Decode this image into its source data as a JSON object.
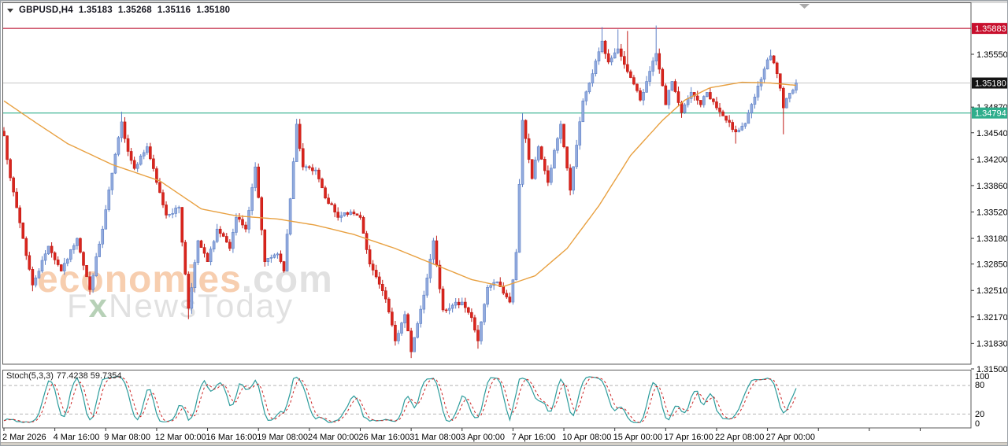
{
  "header": {
    "symbol_timeframe": "GBPUSD,H4",
    "open": "1.35183",
    "high": "1.35268",
    "low": "1.35116",
    "close": "1.35180"
  },
  "watermark": {
    "line1_main": "economies",
    "line1_suffix": ".com",
    "line2_f": "F",
    "line2_x": "x",
    "line2_rest": "NewsToday"
  },
  "chart_data": {
    "type": "candlestick",
    "symbol": "GBPUSD",
    "timeframe": "H4",
    "title": "GBPUSD,H4 1.35183 1.35268 1.35116 1.35180",
    "price_axis": {
      "plain_labels": [
        "1.35550",
        "1.34870",
        "1.34540",
        "1.34200",
        "1.33860",
        "1.33520",
        "1.33180",
        "1.32850",
        "1.32510",
        "1.32170",
        "1.31830",
        "1.31500"
      ],
      "range": [
        1.315,
        1.35883
      ]
    },
    "price_tags": [
      {
        "text": "1.35883",
        "value": 1.35883,
        "kind": "resistance"
      },
      {
        "text": "1.35180",
        "value": 1.3518,
        "kind": "current"
      },
      {
        "text": "1.34794",
        "value": 1.34794,
        "kind": "support"
      }
    ],
    "levels": [
      {
        "value": 1.35883,
        "color": "#c0203e"
      },
      {
        "value": 1.3518,
        "color": "#c6c6c6"
      },
      {
        "value": 1.34794,
        "color": "#2fae8c"
      }
    ],
    "time_axis": {
      "labels": [
        "2 Mar 2026",
        "4 Mar 16:00",
        "9 Mar 08:00",
        "12 Mar 00:00",
        "16 Mar 16:00",
        "19 Mar 08:00",
        "24 Mar 00:00",
        "26 Mar 16:00",
        "31 Mar 08:00",
        "3 Apr 00:00",
        "7 Apr 16:00",
        "10 Apr 08:00",
        "15 Apr 00:00",
        "17 Apr 16:00",
        "22 Apr 08:00",
        "27 Apr 00:00"
      ],
      "bars_per_label": 16
    },
    "candles": {
      "count": 250,
      "note": "close-path swing anchors read from chart as [bar_index, price]",
      "anchors": [
        [
          0,
          1.345
        ],
        [
          2,
          1.3396
        ],
        [
          5,
          1.3338
        ],
        [
          9,
          1.3258
        ],
        [
          14,
          1.3308
        ],
        [
          18,
          1.3276
        ],
        [
          23,
          1.3318
        ],
        [
          27,
          1.3252
        ],
        [
          31,
          1.333
        ],
        [
          34,
          1.3402
        ],
        [
          37,
          1.3468
        ],
        [
          39,
          1.343
        ],
        [
          41,
          1.3408
        ],
        [
          45,
          1.3436
        ],
        [
          48,
          1.339
        ],
        [
          51,
          1.3348
        ],
        [
          55,
          1.3358
        ],
        [
          58,
          1.3228
        ],
        [
          61,
          1.3315
        ],
        [
          64,
          1.3288
        ],
        [
          67,
          1.333
        ],
        [
          71,
          1.3305
        ],
        [
          73,
          1.3345
        ],
        [
          76,
          1.333
        ],
        [
          79,
          1.341
        ],
        [
          82,
          1.3288
        ],
        [
          86,
          1.3298
        ],
        [
          88,
          1.3276
        ],
        [
          92,
          1.3465
        ],
        [
          94,
          1.341
        ],
        [
          98,
          1.3406
        ],
        [
          101,
          1.337
        ],
        [
          105,
          1.3345
        ],
        [
          109,
          1.3352
        ],
        [
          112,
          1.3345
        ],
        [
          115,
          1.3285
        ],
        [
          120,
          1.324
        ],
        [
          123,
          1.3186
        ],
        [
          126,
          1.322
        ],
        [
          128,
          1.3172
        ],
        [
          132,
          1.3245
        ],
        [
          135,
          1.3315
        ],
        [
          138,
          1.3226
        ],
        [
          141,
          1.3232
        ],
        [
          144,
          1.3236
        ],
        [
          147,
          1.3216
        ],
        [
          149,
          1.3186
        ],
        [
          152,
          1.3255
        ],
        [
          155,
          1.3262
        ],
        [
          159,
          1.3236
        ],
        [
          161,
          1.33
        ],
        [
          163,
          1.347
        ],
        [
          166,
          1.3395
        ],
        [
          168,
          1.3436
        ],
        [
          171,
          1.339
        ],
        [
          175,
          1.3465
        ],
        [
          178,
          1.338
        ],
        [
          182,
          1.3495
        ],
        [
          185,
          1.353
        ],
        [
          188,
          1.3572
        ],
        [
          190,
          1.3545
        ],
        [
          193,
          1.3562
        ],
        [
          197,
          1.3525
        ],
        [
          200,
          1.3496
        ],
        [
          202,
          1.352
        ],
        [
          205,
          1.3556
        ],
        [
          208,
          1.349
        ],
        [
          210,
          1.352
        ],
        [
          213,
          1.348
        ],
        [
          216,
          1.3506
        ],
        [
          219,
          1.349
        ],
        [
          221,
          1.3506
        ],
        [
          224,
          1.3486
        ],
        [
          227,
          1.347
        ],
        [
          230,
          1.3455
        ],
        [
          233,
          1.3466
        ],
        [
          236,
          1.35
        ],
        [
          239,
          1.3536
        ],
        [
          241,
          1.3553
        ],
        [
          243,
          1.353
        ],
        [
          245,
          1.3486
        ],
        [
          247,
          1.3505
        ],
        [
          249,
          1.3518
        ]
      ],
      "spikes": [
        [
          9,
          "l",
          1.325
        ],
        [
          37,
          "h",
          1.3481
        ],
        [
          58,
          "l",
          1.3214
        ],
        [
          92,
          "h",
          1.3472
        ],
        [
          123,
          "l",
          1.318
        ],
        [
          128,
          "l",
          1.3164
        ],
        [
          149,
          "l",
          1.3176
        ],
        [
          163,
          "h",
          1.3479
        ],
        [
          188,
          "h",
          1.359
        ],
        [
          193,
          "h",
          1.3587
        ],
        [
          196,
          "h",
          1.3585
        ],
        [
          205,
          "h",
          1.3592
        ],
        [
          230,
          "l",
          1.344
        ],
        [
          241,
          "h",
          1.3561
        ],
        [
          245,
          "l",
          1.3452
        ]
      ],
      "noise": 0.0008,
      "wick": 0.0007,
      "seed": 7
    },
    "ma": {
      "name": "moving-average",
      "points": [
        [
          0,
          1.3495
        ],
        [
          10,
          1.3467
        ],
        [
          20,
          1.344
        ],
        [
          34,
          1.3413
        ],
        [
          49,
          1.3392
        ],
        [
          62,
          1.3356
        ],
        [
          73,
          1.3347
        ],
        [
          86,
          1.3343
        ],
        [
          98,
          1.3335
        ],
        [
          110,
          1.3323
        ],
        [
          123,
          1.3305
        ],
        [
          135,
          1.3285
        ],
        [
          147,
          1.3265
        ],
        [
          157,
          1.3256
        ],
        [
          167,
          1.327
        ],
        [
          177,
          1.3305
        ],
        [
          187,
          1.336
        ],
        [
          197,
          1.3425
        ],
        [
          207,
          1.347
        ],
        [
          214,
          1.3496
        ],
        [
          222,
          1.3512
        ],
        [
          232,
          1.3519
        ],
        [
          241,
          1.3518
        ],
        [
          249,
          1.3515
        ]
      ]
    },
    "stoch": {
      "label": "Stoch(5,3,3)",
      "values_text": "77.4238 59.7354",
      "k_value": 77.4238,
      "d_value": 59.7354,
      "levels": [
        80,
        20
      ],
      "scale_labels": [
        "100",
        "80",
        "20",
        "0"
      ],
      "ylim": [
        0,
        100
      ]
    },
    "colors": {
      "bull": "#93abde",
      "bull_stroke": "#5e80c6",
      "bear": "#da251d",
      "bear_stroke": "#c01a15",
      "ma": "#e8a040",
      "level_red": "#c0203e",
      "level_gray": "#c6c6c6",
      "level_green": "#2fae8c",
      "stoch_k": "#2d9c9c",
      "stoch_d": "#cc2424",
      "tag_red_bg": "#c8102e",
      "tag_black_bg": "#141414",
      "tag_green_bg": "#2fae8c",
      "axis_text": "#000000"
    }
  }
}
